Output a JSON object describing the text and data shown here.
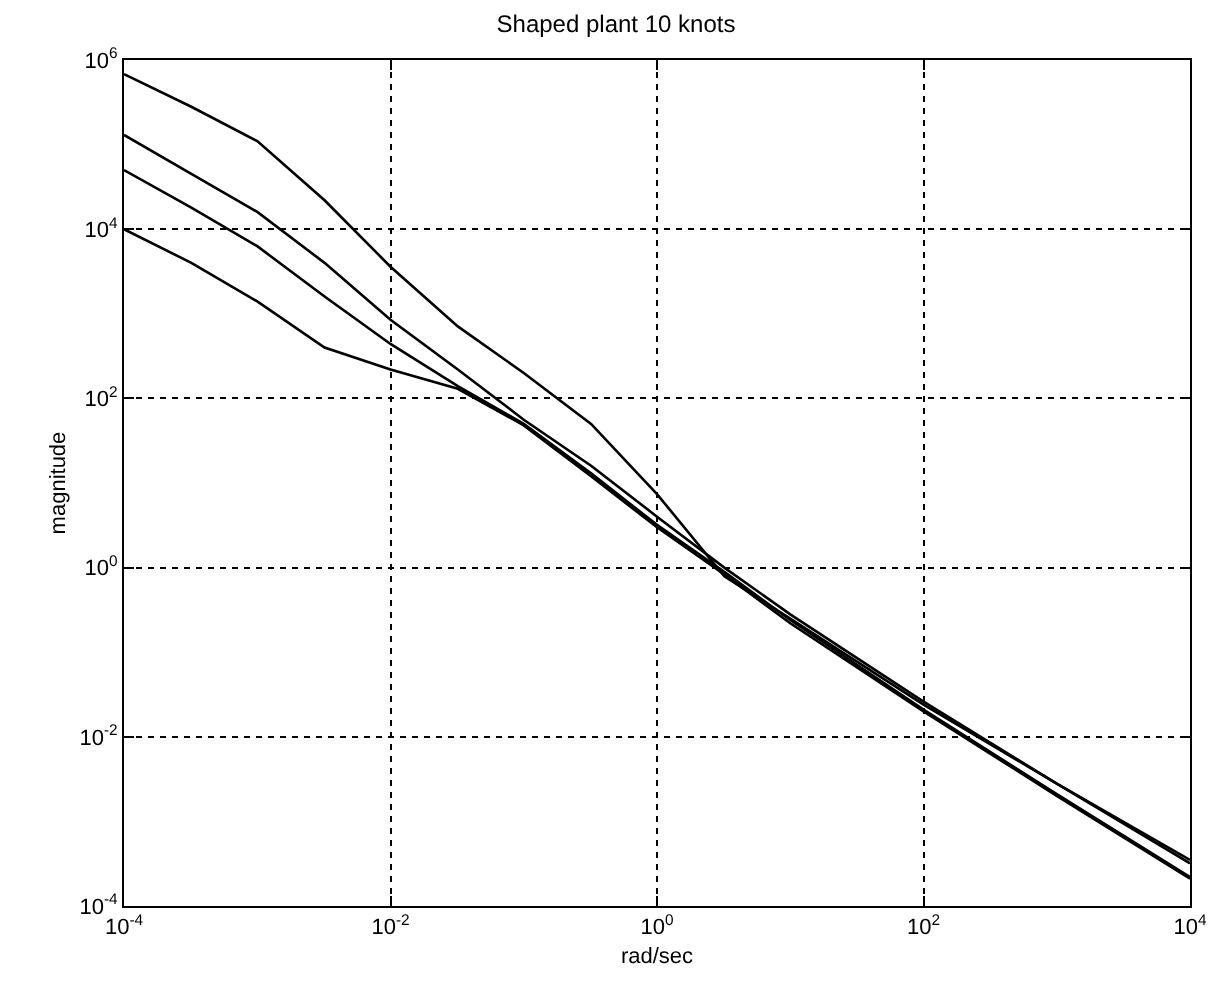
{
  "chart_data": {
    "type": "line",
    "title": "Shaped plant 10 knots",
    "xlabel": "rad/sec",
    "ylabel": "magnitude",
    "x": [
      0.0001,
      0.00032,
      0.001,
      0.0032,
      0.01,
      0.032,
      0.1,
      0.32,
      1,
      3.2,
      10,
      100,
      1000,
      10000
    ],
    "series": [
      {
        "color": "#000000",
        "values": [
          680000,
          280000,
          110000,
          22000,
          3600,
          710,
          200,
          50,
          7.4,
          0.79,
          0.25,
          0.024,
          0.0028,
          0.00035
        ]
      },
      {
        "color": "#000000",
        "values": [
          130000,
          45000,
          16000,
          4000,
          850,
          220,
          56,
          16,
          4,
          1,
          0.28,
          0.026,
          0.0028,
          0.00032
        ]
      },
      {
        "color": "#000000",
        "values": [
          50000,
          18000,
          6300,
          1600,
          440,
          140,
          50,
          13,
          3.2,
          0.89,
          0.24,
          0.021,
          0.0021,
          0.00022
        ]
      },
      {
        "color": "#000000",
        "values": [
          10000,
          4000,
          1400,
          400,
          220,
          130,
          48,
          12,
          3,
          0.83,
          0.22,
          0.02,
          0.002,
          0.00021
        ]
      }
    ],
    "log": "xy",
    "xlim": [
      0.0001,
      10000
    ],
    "ylim": [
      0.0001,
      1000000
    ],
    "xticks": [
      {
        "value": 0.0001,
        "label": "10$^{-4}$"
      },
      {
        "value": 0.01,
        "label": "10$^{-2}$"
      },
      {
        "value": 1,
        "label": "10$^{0}$"
      },
      {
        "value": 100,
        "label": "10$^{2}$"
      },
      {
        "value": 10000,
        "label": "10$^{4}$"
      }
    ],
    "yticks": [
      {
        "value": 0.0001,
        "label": "10$^{-4}$"
      },
      {
        "value": 0.01,
        "label": "10$^{-2}$"
      },
      {
        "value": 1,
        "label": "10$^{0}$"
      },
      {
        "value": 100,
        "label": "10$^{2}$"
      },
      {
        "value": 10000,
        "label": "10$^{4}$"
      },
      {
        "value": 1000000,
        "label": "10$^{6}$"
      }
    ],
    "grid": true,
    "line_style": "solid",
    "marker": "none"
  }
}
